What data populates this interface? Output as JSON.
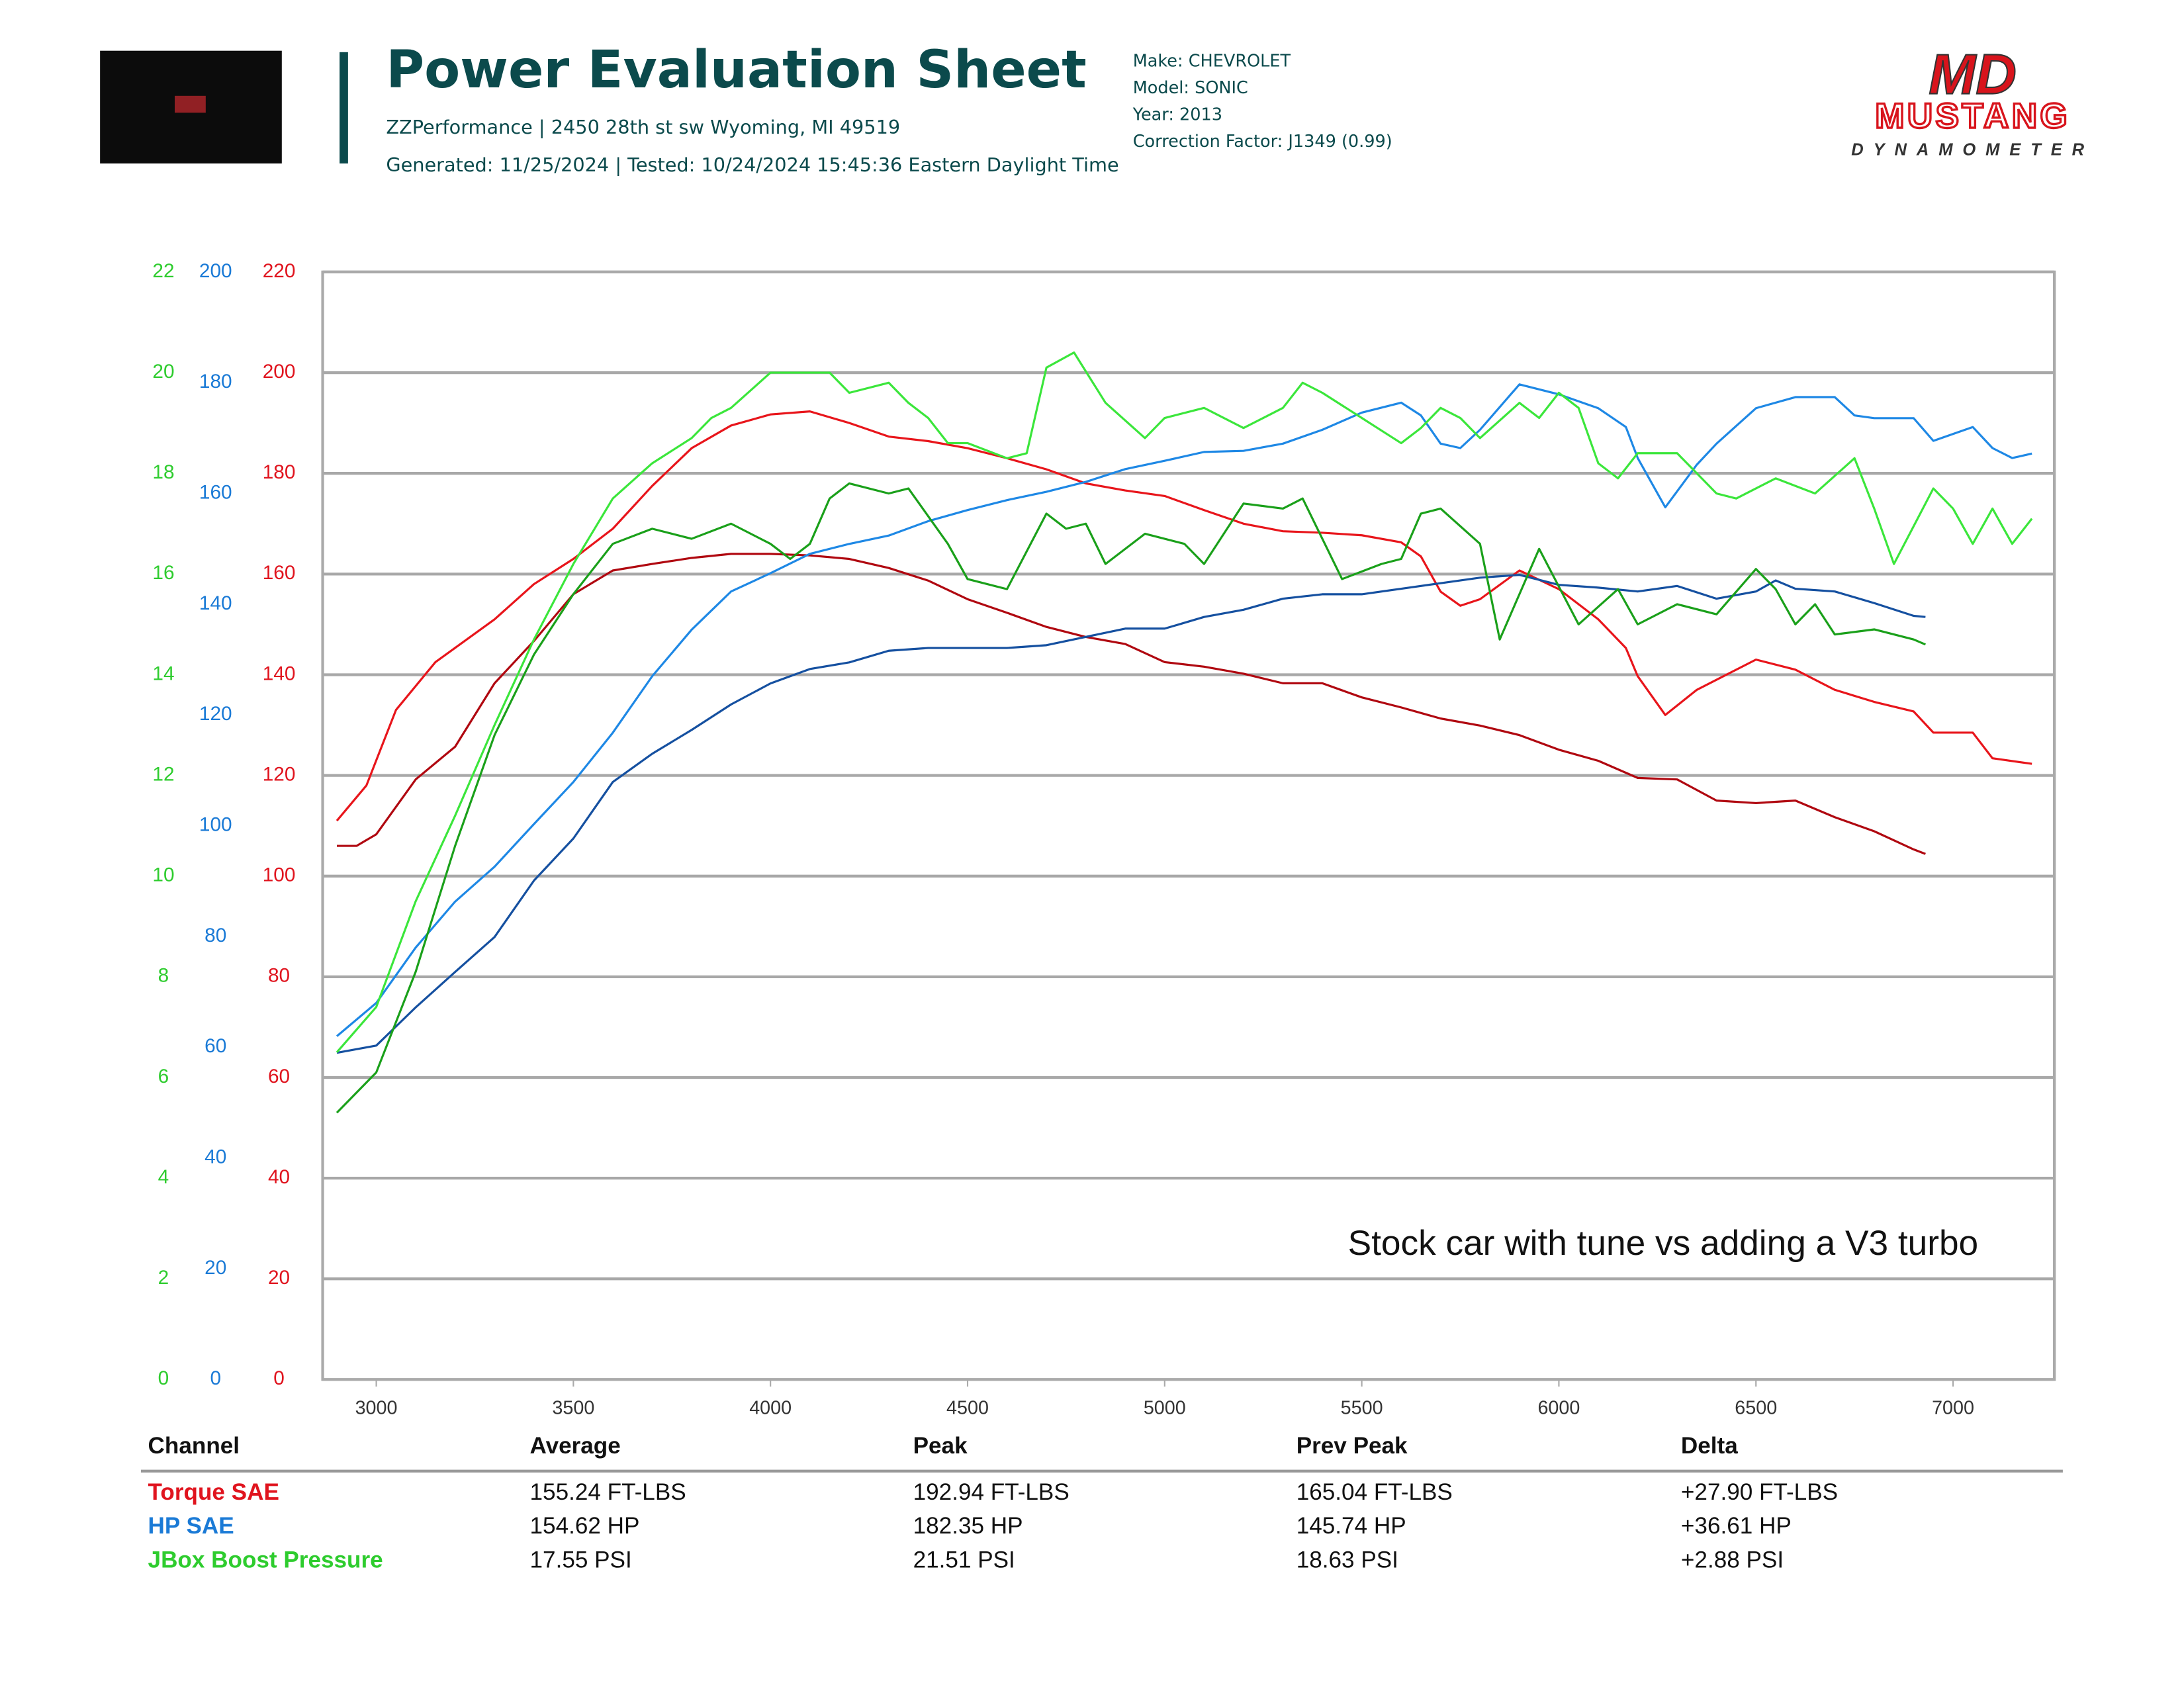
{
  "header": {
    "title": "Power Evaluation Sheet",
    "shop": "ZZPerformance | 2450 28th st sw Wyoming, MI 49519",
    "dates": "Generated: 11/25/2024 | Tested: 10/24/2024 15:45:36 Eastern Daylight Time",
    "vehicle": [
      "Make: CHEVROLET",
      "Model: SONIC",
      "Year: 2013",
      "Correction Factor: J1349 (0.99)"
    ],
    "logo": {
      "mark": "MD",
      "name": "MUSTANG",
      "sub": "DYNAMOMETER"
    }
  },
  "chart_data": {
    "type": "line",
    "annotation": "Stock car with tune vs adding a V3 turbo",
    "xlim": [
      2864,
      7257
    ],
    "xticks": [
      3000,
      3500,
      4000,
      4500,
      5000,
      5500,
      6000,
      6500,
      7000
    ],
    "ylim": [
      0,
      220
    ],
    "yticks": [
      0,
      20,
      40,
      60,
      80,
      100,
      120,
      140,
      160,
      180,
      200,
      220
    ],
    "y2lim": [
      0,
      200
    ],
    "y2ticks": [
      0,
      20,
      40,
      60,
      80,
      100,
      120,
      140,
      160,
      180,
      200
    ],
    "y3lim": [
      0,
      22
    ],
    "y3ticks": [
      0,
      2,
      4,
      6,
      8,
      10,
      12,
      14,
      16,
      18,
      20,
      22
    ],
    "axis_colors": {
      "y": "#e0141e",
      "y2": "#1a7ad6",
      "y3": "#2ecc2e"
    },
    "grid": true,
    "series": [
      {
        "color": "#e8151b",
        "axis": "y",
        "x": [
          2900,
          2975,
          3050,
          3150,
          3300,
          3400,
          3500,
          3600,
          3700,
          3800,
          3900,
          4000,
          4100,
          4200,
          4300,
          4400,
          4500,
          4600,
          4700,
          4800,
          4900,
          5000,
          5100,
          5200,
          5300,
          5400,
          5500,
          5600,
          5650,
          5700,
          5750,
          5800,
          5900,
          6000,
          6100,
          6170,
          6200,
          6270,
          6350,
          6400,
          6500,
          6600,
          6700,
          6800,
          6900,
          6950,
          7050,
          7100,
          7200
        ],
        "values": [
          111,
          118,
          133,
          142.5,
          151,
          158,
          163,
          169,
          177.5,
          185,
          189.5,
          191.7,
          192.3,
          190,
          187.3,
          186.4,
          185,
          183,
          180.8,
          178,
          176.6,
          175.5,
          172.7,
          170,
          168.5,
          168.2,
          167.7,
          166.3,
          163.5,
          156.5,
          153.7,
          155,
          160.7,
          157,
          151,
          145.3,
          139.7,
          132,
          137,
          139,
          143,
          141,
          137,
          134.6,
          132.7,
          128.5,
          128.5,
          123.4,
          122.3
        ]
      },
      {
        "color": "#b00810",
        "axis": "y",
        "x": [
          2900,
          2950,
          3000,
          3100,
          3200,
          3300,
          3400,
          3500,
          3600,
          3700,
          3800,
          3900,
          4000,
          4100,
          4200,
          4300,
          4400,
          4500,
          4600,
          4700,
          4800,
          4900,
          5000,
          5100,
          5200,
          5300,
          5400,
          5500,
          5600,
          5700,
          5800,
          5900,
          6000,
          6100,
          6200,
          6300,
          6400,
          6500,
          6600,
          6700,
          6800,
          6900,
          6930
        ],
        "values": [
          106,
          106,
          108.3,
          119.2,
          125.7,
          138.3,
          146.7,
          156,
          160.7,
          162,
          163.2,
          164,
          164,
          163.7,
          163,
          161.2,
          158.7,
          155,
          152.3,
          149.5,
          147.5,
          146.1,
          142.5,
          141.6,
          140.2,
          138.3,
          138.3,
          135.5,
          133.5,
          131.3,
          129.9,
          128,
          125.1,
          122.9,
          119.5,
          119.2,
          115,
          114.5,
          115,
          111.7,
          108.9,
          105.3,
          104.4
        ]
      },
      {
        "color": "#1e88e5",
        "axis": "y2",
        "x": [
          2900,
          3000,
          3100,
          3200,
          3300,
          3400,
          3500,
          3600,
          3700,
          3800,
          3900,
          4000,
          4100,
          4200,
          4300,
          4400,
          4500,
          4600,
          4700,
          4800,
          4900,
          5000,
          5100,
          5200,
          5300,
          5400,
          5500,
          5600,
          5650,
          5700,
          5750,
          5800,
          5900,
          6000,
          6100,
          6170,
          6200,
          6270,
          6350,
          6400,
          6500,
          6600,
          6700,
          6750,
          6800,
          6900,
          6950,
          7050,
          7100,
          7150,
          7200
        ],
        "values": [
          62,
          68,
          78,
          86.3,
          92.6,
          100.3,
          107.9,
          116.8,
          127,
          135.4,
          142.3,
          145.6,
          149.1,
          150.9,
          152.4,
          155,
          157,
          158.8,
          160.3,
          162.1,
          164.4,
          165.9,
          167.5,
          167.7,
          169,
          171.5,
          174.6,
          176.4,
          174.1,
          169,
          168.2,
          171.5,
          179.7,
          177.9,
          175.4,
          172,
          166.4,
          157.5,
          165.2,
          169,
          175.4,
          177.4,
          177.4,
          174.1,
          173.6,
          173.6,
          169.5,
          172,
          168.2,
          166.4,
          167.2
        ]
      },
      {
        "color": "#1550a0",
        "axis": "y2",
        "x": [
          2900,
          3000,
          3100,
          3200,
          3300,
          3400,
          3500,
          3600,
          3700,
          3800,
          3900,
          4000,
          4100,
          4200,
          4300,
          4400,
          4500,
          4600,
          4700,
          4800,
          4900,
          5000,
          5100,
          5200,
          5300,
          5400,
          5500,
          5600,
          5700,
          5800,
          5900,
          6000,
          6100,
          6200,
          6300,
          6400,
          6500,
          6550,
          6600,
          6700,
          6800,
          6900,
          6930
        ],
        "values": [
          59,
          60.3,
          67.2,
          73.6,
          79.9,
          90.1,
          97.7,
          107.9,
          113,
          117.3,
          121.9,
          125.7,
          128.3,
          129.5,
          131.6,
          132.1,
          132.1,
          132.1,
          132.6,
          134.1,
          135.6,
          135.6,
          137.7,
          139,
          141,
          141.8,
          141.8,
          142.8,
          143.8,
          144.8,
          145.3,
          143.5,
          143,
          142.3,
          143.3,
          141,
          142.3,
          144.3,
          142.8,
          142.3,
          140.2,
          137.9,
          137.7
        ]
      },
      {
        "color": "#3be63b",
        "axis": "y3",
        "x": [
          2900,
          3000,
          3100,
          3200,
          3300,
          3400,
          3500,
          3600,
          3700,
          3800,
          3850,
          3900,
          4000,
          4100,
          4150,
          4200,
          4300,
          4350,
          4400,
          4450,
          4500,
          4600,
          4650,
          4700,
          4770,
          4850,
          4950,
          5000,
          5100,
          5200,
          5300,
          5350,
          5400,
          5500,
          5600,
          5650,
          5700,
          5750,
          5800,
          5900,
          5950,
          6000,
          6050,
          6100,
          6150,
          6200,
          6300,
          6400,
          6450,
          6550,
          6650,
          6750,
          6800,
          6850,
          6950,
          7000,
          7050,
          7100,
          7150,
          7200
        ],
        "values": [
          6.5,
          7.4,
          9.5,
          11.2,
          13,
          14.7,
          16.2,
          17.5,
          18.2,
          18.7,
          19.1,
          19.3,
          20,
          20,
          20,
          19.6,
          19.8,
          19.4,
          19.1,
          18.6,
          18.6,
          18.3,
          18.4,
          20.1,
          20.4,
          19.4,
          18.7,
          19.1,
          19.3,
          18.9,
          19.3,
          19.8,
          19.6,
          19.1,
          18.6,
          18.9,
          19.3,
          19.1,
          18.7,
          19.4,
          19.1,
          19.6,
          19.3,
          18.2,
          17.9,
          18.4,
          18.4,
          17.6,
          17.5,
          17.9,
          17.6,
          18.3,
          17.3,
          16.2,
          17.7,
          17.3,
          16.6,
          17.3,
          16.6,
          17.1
        ]
      },
      {
        "color": "#1aa01a",
        "axis": "y3",
        "x": [
          2900,
          3000,
          3100,
          3200,
          3300,
          3400,
          3500,
          3600,
          3700,
          3800,
          3900,
          4000,
          4050,
          4100,
          4150,
          4200,
          4300,
          4350,
          4450,
          4500,
          4600,
          4700,
          4750,
          4800,
          4850,
          4950,
          5050,
          5100,
          5200,
          5300,
          5350,
          5450,
          5550,
          5600,
          5650,
          5700,
          5800,
          5850,
          5950,
          6050,
          6150,
          6200,
          6300,
          6400,
          6500,
          6550,
          6600,
          6650,
          6700,
          6800,
          6900,
          6930
        ],
        "values": [
          5.3,
          6.1,
          8.1,
          10.6,
          12.8,
          14.4,
          15.6,
          16.6,
          16.9,
          16.7,
          17,
          16.6,
          16.3,
          16.6,
          17.5,
          17.8,
          17.6,
          17.7,
          16.6,
          15.9,
          15.7,
          17.2,
          16.9,
          17,
          16.2,
          16.8,
          16.6,
          16.2,
          17.4,
          17.3,
          17.5,
          15.9,
          16.2,
          16.3,
          17.2,
          17.3,
          16.6,
          14.7,
          16.5,
          15,
          15.7,
          15,
          15.4,
          15.2,
          16.1,
          15.7,
          15,
          15.4,
          14.8,
          14.9,
          14.7,
          14.6
        ]
      }
    ]
  },
  "table": {
    "columns": [
      "Channel",
      "Average",
      "Peak",
      "Prev Peak",
      "Delta"
    ],
    "rows": [
      {
        "channel": "Torque SAE",
        "color": "#e0141e",
        "cells": [
          "155.24 FT-LBS",
          "192.94 FT-LBS",
          "165.04 FT-LBS",
          "+27.90 FT-LBS"
        ]
      },
      {
        "channel": "HP SAE",
        "color": "#1a7ad6",
        "cells": [
          "154.62 HP",
          "182.35 HP",
          "145.74 HP",
          "+36.61 HP"
        ]
      },
      {
        "channel": "JBox Boost Pressure",
        "color": "#2ecc2e",
        "cells": [
          "17.55 PSI",
          "21.51 PSI",
          "18.63 PSI",
          "+2.88 PSI"
        ]
      }
    ]
  }
}
